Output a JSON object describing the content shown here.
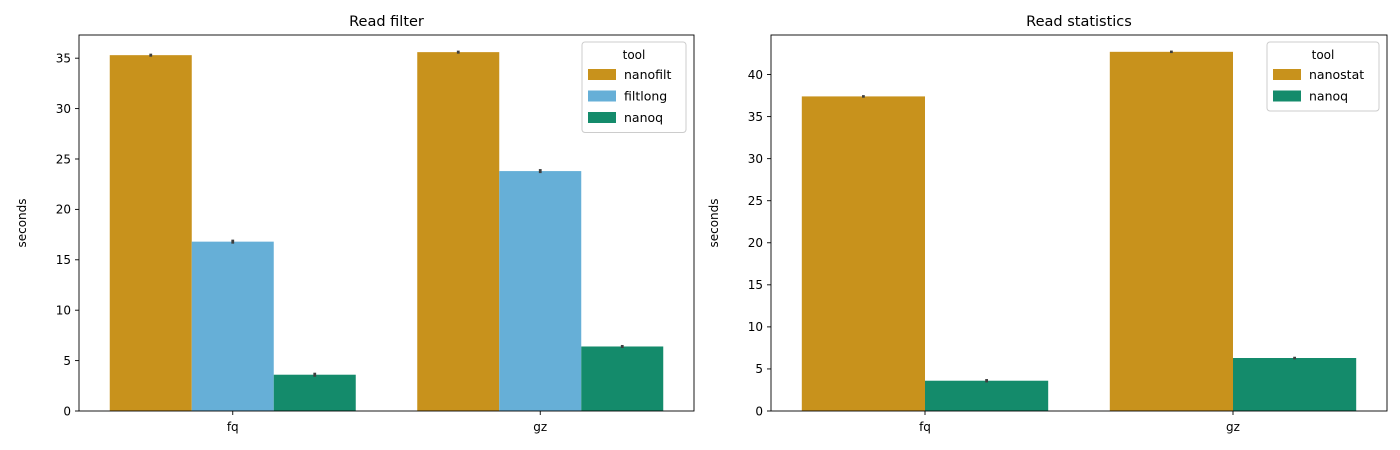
{
  "chart_data": [
    {
      "type": "bar",
      "title": "Read filter",
      "xlabel": "",
      "ylabel": "seconds",
      "categories": [
        "fq",
        "gz"
      ],
      "ylim": [
        0,
        37.3
      ],
      "yticks": [
        0,
        5,
        10,
        15,
        20,
        25,
        30,
        35
      ],
      "grid": false,
      "legend": {
        "title": "tool",
        "placement": "top-right"
      },
      "series": [
        {
          "name": "nanofilt",
          "color": "#c8921c",
          "values": [
            35.3,
            35.6
          ],
          "err": [
            0.15,
            0.15
          ]
        },
        {
          "name": "filtlong",
          "color": "#66afd7",
          "values": [
            16.8,
            23.8
          ],
          "err": [
            0.2,
            0.2
          ]
        },
        {
          "name": "nanoq",
          "color": "#148b6b",
          "values": [
            3.6,
            6.4
          ],
          "err": [
            0.2,
            0.15
          ]
        }
      ]
    },
    {
      "type": "bar",
      "title": "Read statistics",
      "xlabel": "",
      "ylabel": "seconds",
      "categories": [
        "fq",
        "gz"
      ],
      "ylim": [
        0,
        44.7
      ],
      "yticks": [
        0,
        5,
        10,
        15,
        20,
        25,
        30,
        35,
        40
      ],
      "grid": false,
      "legend": {
        "title": "tool",
        "placement": "top-right"
      },
      "series": [
        {
          "name": "nanostat",
          "color": "#c8921c",
          "values": [
            37.4,
            42.7
          ],
          "err": [
            0.15,
            0.15
          ]
        },
        {
          "name": "nanoq",
          "color": "#148b6b",
          "values": [
            3.6,
            6.3
          ],
          "err": [
            0.2,
            0.15
          ]
        }
      ]
    }
  ]
}
